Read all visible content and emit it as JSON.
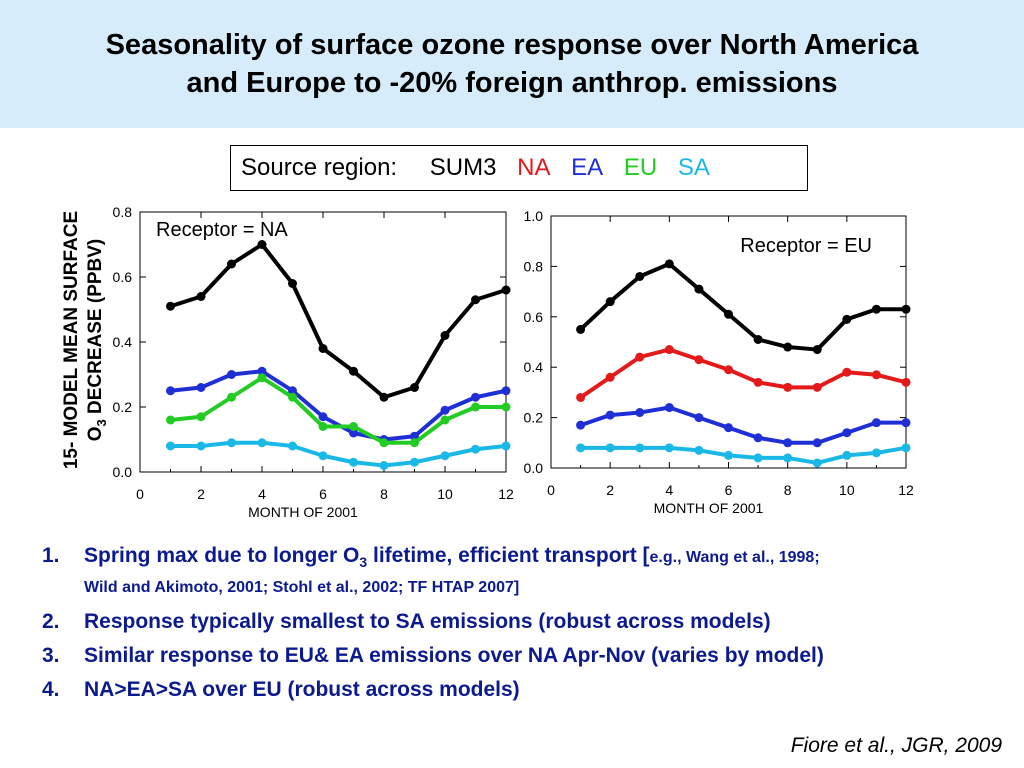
{
  "title_line1": "Seasonality of surface ozone response over North America",
  "title_line2": "and Europe to -20% foreign anthrop. emissions",
  "legend": {
    "label": "Source region:",
    "items": [
      {
        "name": "SUM3",
        "color": "#000000"
      },
      {
        "name": "NA",
        "color": "#e41a1a"
      },
      {
        "name": "EA",
        "color": "#1f2fd6"
      },
      {
        "name": "EU",
        "color": "#22cc22"
      },
      {
        "name": "SA",
        "color": "#1ab8e6"
      }
    ]
  },
  "ylabel_line1": "15- MODEL MEAN SURFACE",
  "ylabel_line2_prefix": "O",
  "ylabel_line2_sub": "3",
  "ylabel_line2_suffix": " DECREASE (PPBV)",
  "chart_data": [
    {
      "type": "line",
      "annotation": "Receptor = NA",
      "xlabel": "MONTH OF 2001",
      "xlim": [
        0,
        12
      ],
      "ylim": [
        0,
        0.8
      ],
      "xticks": [
        "0",
        "2",
        "4",
        "6",
        "8",
        "10",
        "12"
      ],
      "yticks": [
        "0.0",
        "0.2",
        "0.4",
        "0.6",
        "0.8"
      ],
      "x": [
        1,
        2,
        3,
        4,
        5,
        6,
        7,
        8,
        9,
        10,
        11,
        12
      ],
      "series": [
        {
          "color": "#000000",
          "values": [
            0.51,
            0.54,
            0.64,
            0.7,
            0.58,
            0.38,
            0.31,
            0.23,
            0.26,
            0.42,
            0.53,
            0.56
          ]
        },
        {
          "color": "#1f2fd6",
          "values": [
            0.25,
            0.26,
            0.3,
            0.31,
            0.25,
            0.17,
            0.12,
            0.1,
            0.11,
            0.19,
            0.23,
            0.25
          ]
        },
        {
          "color": "#22cc22",
          "values": [
            0.16,
            0.17,
            0.23,
            0.29,
            0.23,
            0.14,
            0.14,
            0.09,
            0.09,
            0.16,
            0.2,
            0.2
          ]
        },
        {
          "color": "#1ab8e6",
          "values": [
            0.08,
            0.08,
            0.09,
            0.09,
            0.08,
            0.05,
            0.03,
            0.02,
            0.03,
            0.05,
            0.07,
            0.08
          ]
        }
      ]
    },
    {
      "type": "line",
      "annotation": "Receptor = EU",
      "xlabel": "MONTH OF 2001",
      "xlim": [
        0,
        12
      ],
      "ylim": [
        0,
        1.0
      ],
      "xticks": [
        "0",
        "2",
        "4",
        "6",
        "8",
        "10",
        "12"
      ],
      "yticks": [
        "0.0",
        "0.2",
        "0.4",
        "0.6",
        "0.8",
        "1.0"
      ],
      "x": [
        1,
        2,
        3,
        4,
        5,
        6,
        7,
        8,
        9,
        10,
        11,
        12
      ],
      "series": [
        {
          "color": "#000000",
          "values": [
            0.55,
            0.66,
            0.76,
            0.81,
            0.71,
            0.61,
            0.51,
            0.48,
            0.47,
            0.59,
            0.63,
            0.63
          ]
        },
        {
          "color": "#e41a1a",
          "values": [
            0.28,
            0.36,
            0.44,
            0.47,
            0.43,
            0.39,
            0.34,
            0.32,
            0.32,
            0.38,
            0.37,
            0.34
          ]
        },
        {
          "color": "#1f2fd6",
          "values": [
            0.17,
            0.21,
            0.22,
            0.24,
            0.2,
            0.16,
            0.12,
            0.1,
            0.1,
            0.14,
            0.18,
            0.18
          ]
        },
        {
          "color": "#1ab8e6",
          "values": [
            0.08,
            0.08,
            0.08,
            0.08,
            0.07,
            0.05,
            0.04,
            0.04,
            0.02,
            0.05,
            0.06,
            0.08
          ]
        }
      ]
    }
  ],
  "notes": [
    {
      "num": "1.",
      "a": "Spring max due to longer O",
      "sub": "3",
      "b": " lifetime, efficient transport [",
      "small": "e.g., Wang et al., 1998;",
      "line2": "Wild and Akimoto, 2001; Stohl et al., 2002; TF HTAP 2007]"
    },
    {
      "num": "2.",
      "text": "Response typically smallest to SA emissions (robust across models)"
    },
    {
      "num": "3.",
      "text": "Similar response to EU& EA emissions over NA Apr-Nov (varies by model)"
    },
    {
      "num": "4.",
      "text": "NA>EA>SA over EU (robust across models)"
    }
  ],
  "citation": "Fiore et al., JGR, 2009"
}
